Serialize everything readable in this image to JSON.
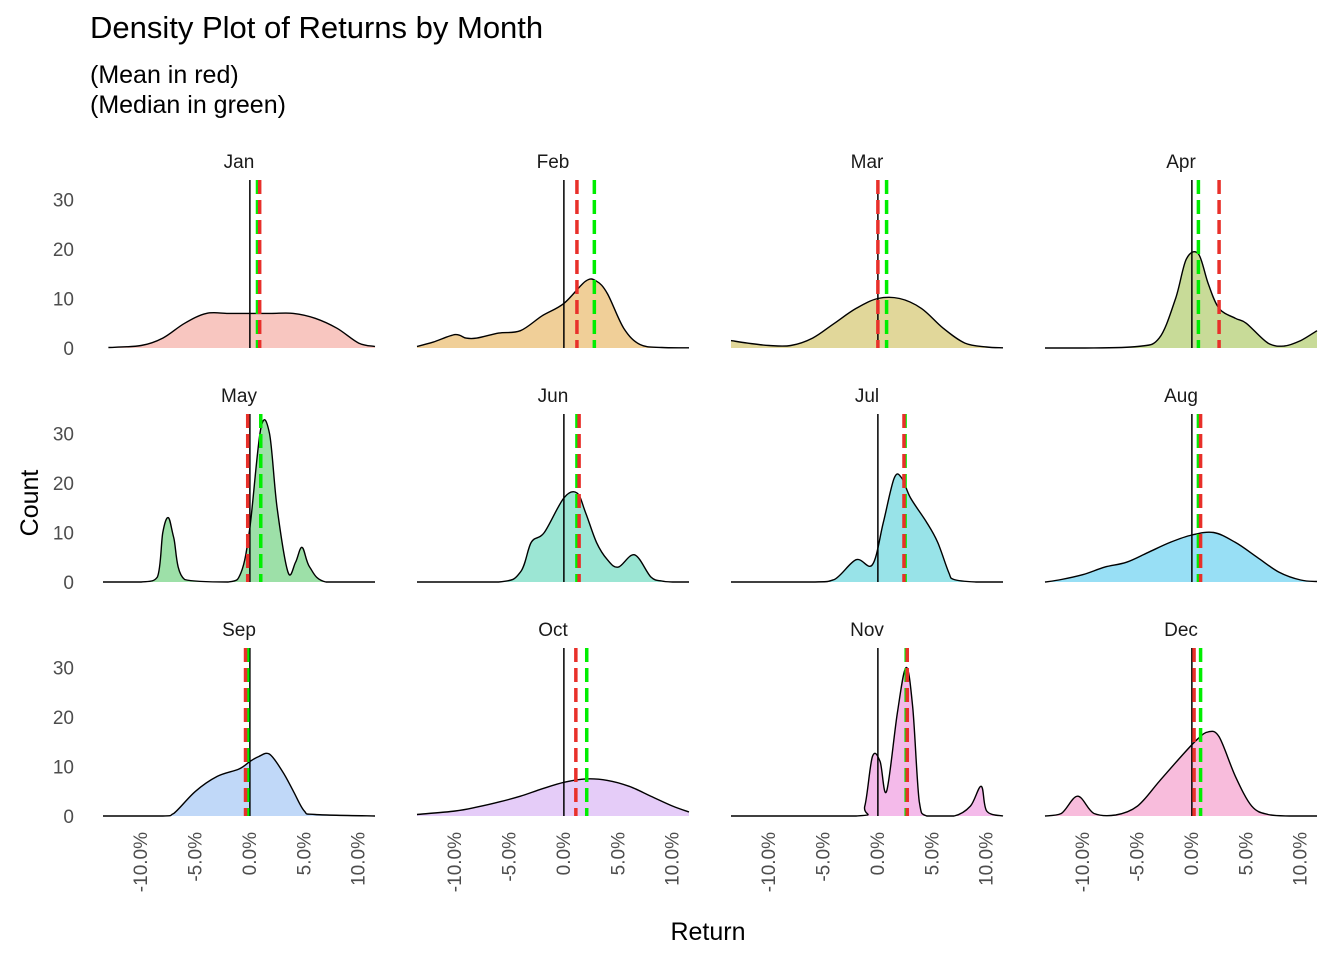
{
  "chart_data": {
    "type": "area",
    "title": "Density Plot of Returns by Month",
    "subtitle": [
      "(Mean in red)",
      "(Median in green)"
    ],
    "xlabel": "Return",
    "ylabel": "Count",
    "xlim": [
      -0.135,
      0.115
    ],
    "ylim": [
      0,
      34
    ],
    "x_ticks": [
      -0.1,
      -0.05,
      0.0,
      0.05,
      0.1
    ],
    "x_tick_labels": [
      "-10.0%",
      "-5.0%",
      "0.0%",
      "5.0%",
      "10.0%"
    ],
    "y_ticks": [
      0,
      10,
      20,
      30
    ],
    "y_tick_labels": [
      "0",
      "10",
      "20",
      "30"
    ],
    "grid": false,
    "legend": "none",
    "colors": {
      "mean": "#e8302a",
      "median": "#00ee00",
      "zero": "#000000",
      "outline": "#000000"
    },
    "facets": [
      {
        "month": "Jan",
        "fill": "#f8c6c0",
        "mean": 0.009,
        "median": 0.007,
        "x": [
          -0.13,
          -0.1,
          -0.08,
          -0.06,
          -0.04,
          -0.02,
          0,
          0.02,
          0.04,
          0.06,
          0.08,
          0.1,
          0.115
        ],
        "y": [
          0.1,
          0.5,
          2,
          5,
          7,
          7,
          7,
          7,
          7,
          6,
          4,
          1,
          0.3
        ]
      },
      {
        "month": "Feb",
        "fill": "#f0cf98",
        "mean": 0.012,
        "median": 0.028,
        "x": [
          -0.135,
          -0.12,
          -0.1,
          -0.09,
          -0.08,
          -0.06,
          -0.04,
          -0.02,
          0,
          0.02,
          0.03,
          0.04,
          0.055,
          0.07,
          0.09,
          0.115
        ],
        "y": [
          0.3,
          1.2,
          2.7,
          2,
          2,
          3,
          3.5,
          6.5,
          9,
          13.5,
          13.5,
          11,
          4,
          0.7,
          0.1,
          0.05
        ]
      },
      {
        "month": "Mar",
        "fill": "#e1d79a",
        "mean": 0.0,
        "median": 0.008,
        "x": [
          -0.135,
          -0.12,
          -0.1,
          -0.08,
          -0.06,
          -0.04,
          -0.02,
          0,
          0.02,
          0.04,
          0.06,
          0.08,
          0.1,
          0.115
        ],
        "y": [
          1.5,
          1,
          0.5,
          0.5,
          2,
          5,
          8,
          10,
          10,
          8,
          4,
          1,
          0.2,
          0.05
        ]
      },
      {
        "month": "Apr",
        "fill": "#c8db98",
        "mean": 0.025,
        "median": 0.006,
        "x": [
          -0.135,
          -0.1,
          -0.05,
          -0.03,
          -0.015,
          -0.005,
          0.006,
          0.015,
          0.025,
          0.04,
          0.05,
          0.07,
          0.085,
          0.1,
          0.115
        ],
        "y": [
          0,
          0,
          0.3,
          2,
          10,
          18,
          19,
          13,
          8,
          6,
          5,
          1,
          0.4,
          1.5,
          3.5
        ]
      },
      {
        "month": "May",
        "fill": "#9de0a8",
        "mean": -0.002,
        "median": 0.01,
        "x": [
          -0.135,
          -0.1,
          -0.085,
          -0.08,
          -0.075,
          -0.07,
          -0.06,
          -0.02,
          -0.008,
          0,
          0.01,
          0.018,
          0.025,
          0.035,
          0.042,
          0.048,
          0.055,
          0.07,
          0.115
        ],
        "y": [
          0,
          0,
          1,
          10,
          13,
          9,
          0.5,
          0,
          2,
          11,
          31,
          30,
          15,
          2,
          4,
          7,
          3,
          0,
          0
        ]
      },
      {
        "month": "Jun",
        "fill": "#9ce6d4",
        "mean": 0.014,
        "median": 0.012,
        "x": [
          -0.135,
          -0.06,
          -0.04,
          -0.03,
          -0.018,
          0,
          0.012,
          0.02,
          0.03,
          0.04,
          0.05,
          0.065,
          0.08,
          0.09,
          0.1,
          0.115
        ],
        "y": [
          0,
          0,
          2,
          8,
          10,
          17,
          18,
          14,
          8,
          4.5,
          3,
          5.5,
          1,
          0.2,
          0,
          0
        ]
      },
      {
        "month": "Jul",
        "fill": "#98e3e8",
        "mean": 0.024,
        "median": 0.025,
        "x": [
          -0.135,
          -0.06,
          -0.04,
          -0.02,
          -0.005,
          0.005,
          0.015,
          0.022,
          0.03,
          0.045,
          0.055,
          0.065,
          0.07,
          0.09,
          0.115
        ],
        "y": [
          0,
          0,
          0.5,
          4.5,
          3.5,
          12,
          21,
          21,
          17,
          12,
          8,
          2,
          0.5,
          0,
          0
        ]
      },
      {
        "month": "Aug",
        "fill": "#98dff5",
        "mean": 0.008,
        "median": 0.006,
        "x": [
          -0.135,
          -0.12,
          -0.1,
          -0.08,
          -0.06,
          -0.04,
          -0.02,
          0,
          0.02,
          0.04,
          0.06,
          0.08,
          0.1,
          0.115
        ],
        "y": [
          0,
          0.5,
          1.5,
          3,
          4,
          6,
          8,
          9.5,
          10,
          8,
          5,
          2,
          0.4,
          0.1
        ]
      },
      {
        "month": "Sep",
        "fill": "#c0d8f8",
        "mean": -0.004,
        "median": -0.002,
        "x": [
          -0.135,
          -0.08,
          -0.07,
          -0.05,
          -0.03,
          -0.01,
          0,
          0.008,
          0.018,
          0.03,
          0.04,
          0.05,
          0.06,
          0.115
        ],
        "y": [
          0,
          0,
          0.5,
          5,
          8,
          9.5,
          11,
          12,
          12.5,
          9,
          5,
          1,
          0.3,
          0
        ]
      },
      {
        "month": "Oct",
        "fill": "#e5ccf8",
        "mean": 0.011,
        "median": 0.021,
        "x": [
          -0.135,
          -0.1,
          -0.08,
          -0.06,
          -0.04,
          -0.02,
          0,
          0.02,
          0.04,
          0.06,
          0.08,
          0.1,
          0.115
        ],
        "y": [
          0.3,
          1,
          1.8,
          2.8,
          4,
          5.5,
          6.8,
          7.5,
          7.2,
          6,
          4,
          2,
          0.8
        ]
      },
      {
        "month": "Nov",
        "fill": "#f4baea",
        "mean": 0.027,
        "median": 0.026,
        "x": [
          -0.135,
          -0.02,
          -0.012,
          -0.005,
          0.002,
          0.008,
          0.018,
          0.026,
          0.032,
          0.038,
          0.045,
          0.07,
          0.085,
          0.095,
          0.1,
          0.115
        ],
        "y": [
          0,
          0,
          2,
          12,
          11,
          5,
          21,
          30,
          22,
          3,
          0,
          0,
          2,
          6,
          1,
          0
        ]
      },
      {
        "month": "Dec",
        "fill": "#f8bcdc",
        "mean": 0.002,
        "median": 0.008,
        "x": [
          -0.135,
          -0.12,
          -0.105,
          -0.09,
          -0.07,
          -0.05,
          -0.03,
          -0.01,
          0.005,
          0.015,
          0.025,
          0.04,
          0.055,
          0.07,
          0.09,
          0.115
        ],
        "y": [
          0,
          0.5,
          4,
          0.5,
          0.2,
          2,
          7,
          12,
          15.5,
          17,
          16,
          8,
          2,
          0.3,
          0,
          0
        ]
      }
    ]
  }
}
